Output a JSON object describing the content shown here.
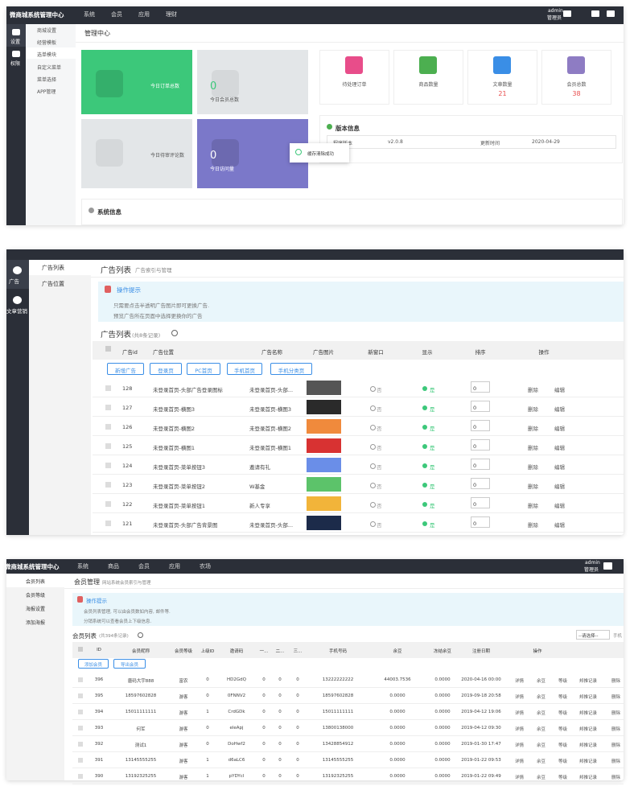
{
  "dashboard": {
    "brand": "微商城系统管理中心",
    "nav": [
      "系统",
      "会员",
      "应用",
      "理财"
    ],
    "user": [
      "admin",
      "管理员"
    ],
    "side": [
      "设置",
      "权限"
    ],
    "submenu": [
      "商城设置",
      "经营模板",
      "选单模块",
      "自定义菜单",
      "菜单选择",
      "APP管理"
    ],
    "breadcrumb": "管理中心",
    "tiles": [
      {
        "label": "今日订单总数"
      },
      {
        "value": "0",
        "label": "今日会员总数"
      },
      {
        "label": "今日待审评论数"
      },
      {
        "value": "0",
        "label": "今日访问量"
      }
    ],
    "cards": [
      {
        "label": "待处理订单"
      },
      {
        "label": "商品数量"
      },
      {
        "label": "文章数量",
        "value": "21"
      },
      {
        "label": "会员总数",
        "value": "38"
      }
    ],
    "version": {
      "title": "版本信息",
      "rows": [
        "程序版本",
        "v2.0.8",
        "更新时间",
        "2020-04-29"
      ]
    },
    "toast": "缓存清除成功",
    "sysinfo": "系统信息"
  },
  "ads": {
    "side": [
      "广告",
      "文章营销"
    ],
    "submenu": [
      "广告列表",
      "广告位置"
    ],
    "title": "广告列表",
    "subtitle": "广告索引与管理",
    "tip": {
      "title": "操作提示",
      "items": [
        "只需要点击半透明广告图片即可更换广告.",
        "预览广告所在页面中选择更换你的广告"
      ]
    },
    "list_title": "广告列表",
    "count": "(共8条记录)",
    "columns": [
      "广告id",
      "广告位置",
      "广告名称",
      "广告图片",
      "新窗口",
      "显示",
      "排序",
      "操作"
    ],
    "buttons": [
      "新增广告",
      "登录页",
      "PC首页",
      "手机首页",
      "手机分类页"
    ],
    "rows": [
      [
        "128",
        "未登录首页-头部广告登录图标",
        "未登录首页-头部...",
        "否",
        "是",
        "0"
      ],
      [
        "127",
        "未登录首页-横图3",
        "未登录首页-横图3",
        "否",
        "是",
        "0"
      ],
      [
        "126",
        "未登录首页-横图2",
        "未登录首页-横图2",
        "否",
        "是",
        "0"
      ],
      [
        "125",
        "未登录首页-横图1",
        "未登录首页-横图1",
        "否",
        "是",
        "0"
      ],
      [
        "124",
        "未登录首页-菜单按钮3",
        "邀请有礼",
        "否",
        "是",
        "0"
      ],
      [
        "123",
        "未登录首页-菜单按钮2",
        "W基金",
        "否",
        "是",
        "0"
      ],
      [
        "122",
        "未登录首页-菜单按钮1",
        "新人专享",
        "否",
        "是",
        "0"
      ],
      [
        "121",
        "未登录首页-头部广告背景图",
        "未登录首页-头部...",
        "否",
        "是",
        "0"
      ]
    ],
    "actions": [
      "删除",
      "编辑"
    ]
  },
  "members": {
    "brand": "微商城系统管理中心",
    "nav": [
      "系统",
      "商品",
      "会员",
      "应用",
      "农场"
    ],
    "user": [
      "admin",
      "管理员"
    ],
    "submenu": [
      "会员列表",
      "会员等级",
      "海报设置",
      "添加海报"
    ],
    "title": "会员管理",
    "subtitle": "网站系统会员索引与管理",
    "tip": {
      "title": "操作提示",
      "items": [
        "会员列表管理, 可以由会员数如内容, 邮件等.",
        "分销系统可以查看会员上下级信息."
      ]
    },
    "list_title": "会员列表",
    "count": "(共394条记录)",
    "select": "--请选择--",
    "search": "手机",
    "columns": [
      "ID",
      "会员昵称",
      "会员等级",
      "上级ID",
      "邀请码",
      "一...",
      "二...",
      "三...",
      "手机号码",
      "余豆",
      "冻结余豆",
      "注册日期",
      "操作"
    ],
    "buttons": [
      "添加会员",
      "导出会员"
    ],
    "rows": [
      [
        "396",
        "唐码大宇888",
        "富农",
        "0",
        "HD2GdQ",
        "0",
        "0",
        "0",
        "13222222222",
        "44003.7536",
        "0.0000",
        "2020-04-16 00:00"
      ],
      [
        "395",
        "18597602828",
        "游客",
        "0",
        "0FNNV2",
        "0",
        "0",
        "0",
        "18597602828",
        "0.0000",
        "0.0000",
        "2019-09-18 20:58"
      ],
      [
        "394",
        "15011111111",
        "游客",
        "1",
        "CrdGDk",
        "0",
        "0",
        "0",
        "15011111111",
        "0.0000",
        "0.0000",
        "2019-04-12 19:06"
      ],
      [
        "393",
        "何军",
        "游客",
        "0",
        "eleApj",
        "0",
        "0",
        "0",
        "13800138000",
        "0.0000",
        "0.0000",
        "2019-04-12 09:30"
      ],
      [
        "392",
        "测试1",
        "游客",
        "0",
        "DoHwf2",
        "0",
        "0",
        "0",
        "13428854912",
        "0.0000",
        "0.0000",
        "2019-01-30 17:47"
      ],
      [
        "391",
        "13145555255",
        "游客",
        "1",
        "d6aLC6",
        "0",
        "0",
        "0",
        "13145555255",
        "0.0000",
        "0.0000",
        "2019-01-22 09:53"
      ],
      [
        "390",
        "13192325255",
        "游客",
        "1",
        "pYDYcl",
        "0",
        "0",
        "0",
        "13192325255",
        "0.0000",
        "0.0000",
        "2019-01-22 09:49"
      ]
    ],
    "actions": [
      "详情",
      "余豆",
      "等级",
      "邦推记录",
      "删除"
    ]
  }
}
